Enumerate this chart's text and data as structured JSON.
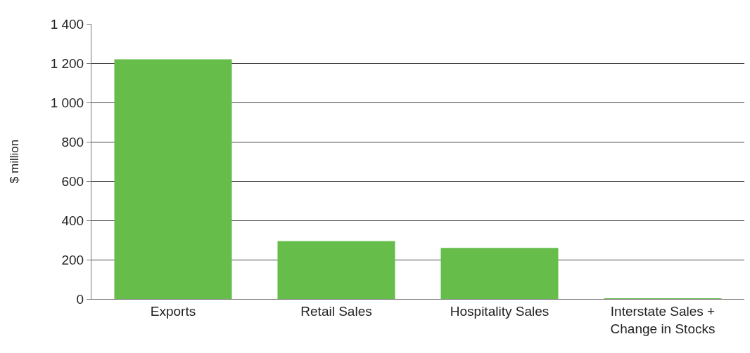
{
  "chart_data": {
    "type": "bar",
    "ylabel": "$ million",
    "categories": [
      "Exports",
      "Retail Sales",
      "Hospitality Sales",
      "Interstate Sales +\nChange in Stocks"
    ],
    "values": [
      1220,
      295,
      260,
      3
    ],
    "color": "#66bd4a",
    "ylim": [
      0,
      1400
    ],
    "yticks": [
      0,
      200,
      400,
      600,
      800,
      {
        "value": 1000,
        "label": "1 000"
      },
      {
        "value": 1200,
        "label": "1 200"
      },
      {
        "value": 1400,
        "label": "1 400"
      }
    ],
    "grid": "y"
  }
}
